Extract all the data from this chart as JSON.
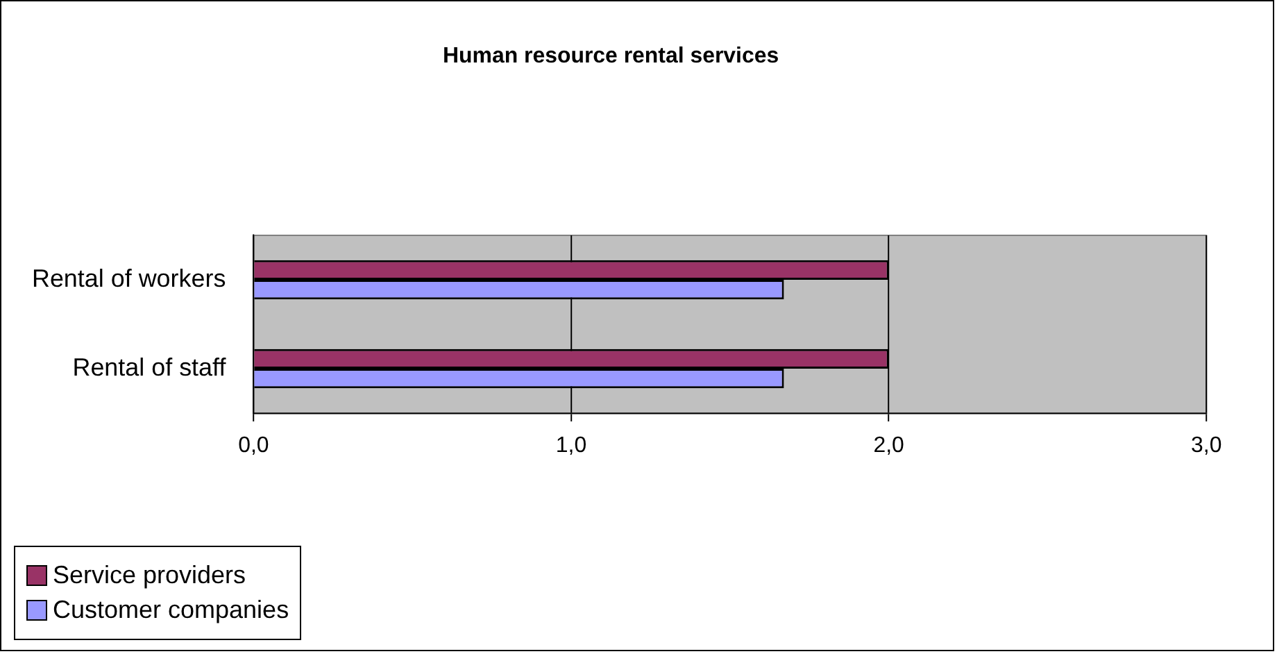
{
  "chart_data": {
    "type": "bar",
    "orientation": "horizontal",
    "title": "Human resource rental services",
    "categories": [
      "Rental of workers",
      "Rental of staff"
    ],
    "series": [
      {
        "name": "Service providers",
        "color": "#993366",
        "values": [
          2.0,
          2.0
        ]
      },
      {
        "name": "Customer companies",
        "color": "#9999ff",
        "values": [
          1.67,
          1.67
        ]
      }
    ],
    "xlim": [
      0,
      3
    ],
    "xticks": [
      {
        "value": 0,
        "label": "0,0"
      },
      {
        "value": 1,
        "label": "1,0"
      },
      {
        "value": 2,
        "label": "2,0"
      },
      {
        "value": 3,
        "label": "3,0"
      }
    ],
    "grid": "x",
    "legend": "bottom left"
  }
}
